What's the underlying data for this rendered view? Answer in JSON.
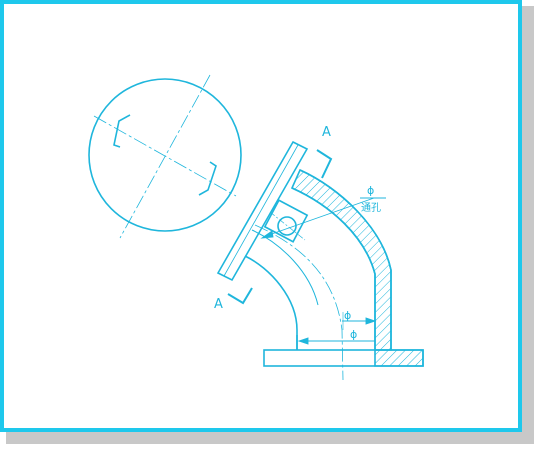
{
  "colors": {
    "line": "#1fb6dc",
    "frame": "#1ec8ec",
    "shadow": "#c8c8c8",
    "background": "#ffffff"
  },
  "labels": {
    "section_mark_upper": "A",
    "section_mark_lower": "A",
    "diameter_through_hole": "ϕ",
    "through_hole_note": "通孔",
    "diameter_inner": "ϕ",
    "diameter_outer": "ϕ"
  }
}
